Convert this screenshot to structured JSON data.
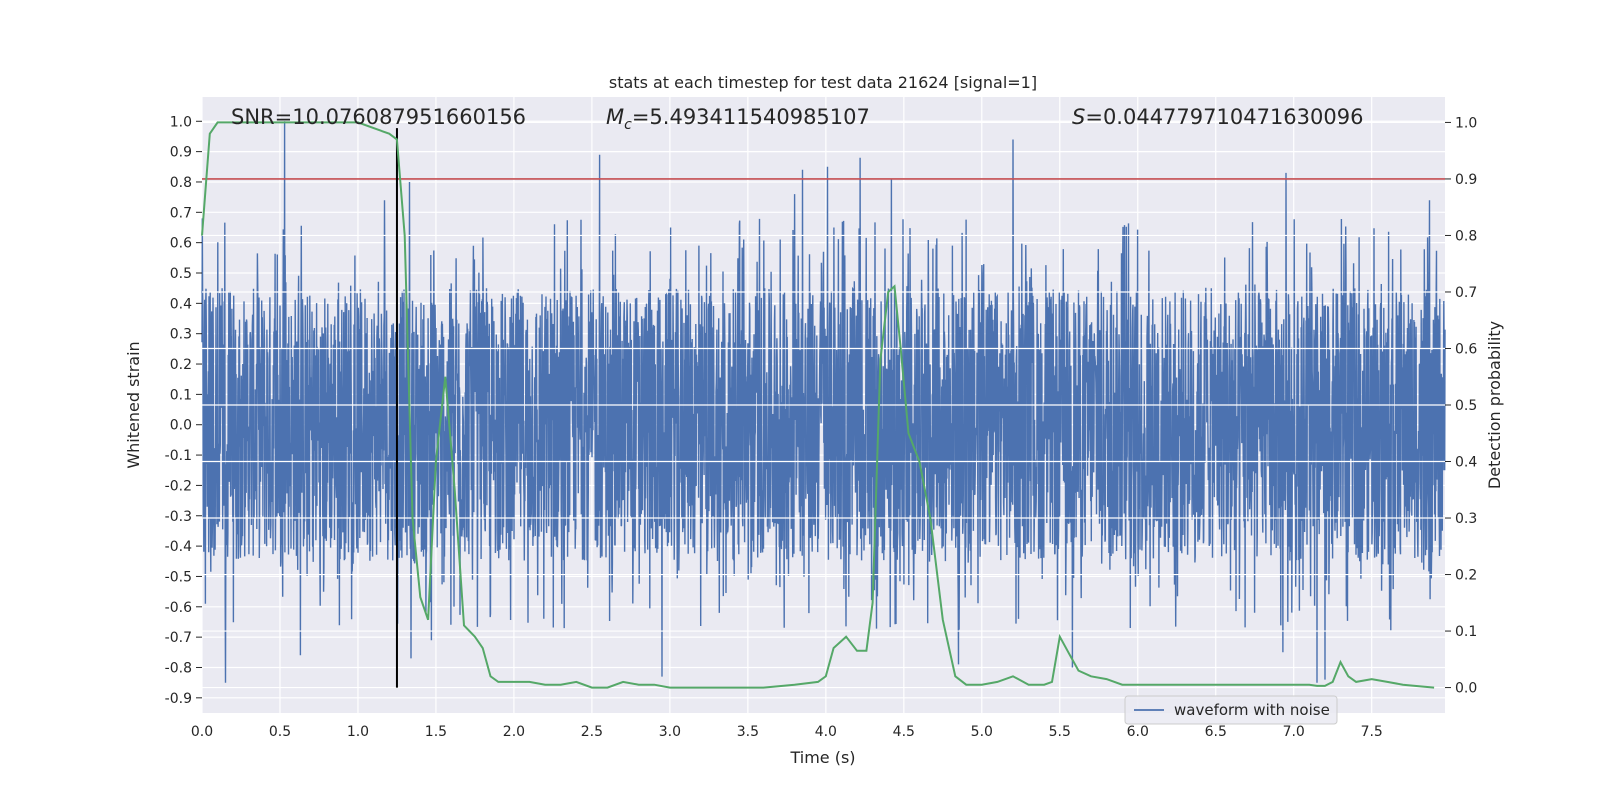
{
  "chart_data": {
    "type": "line",
    "title": "stats at each timestep for test data 21624 [signal=1]",
    "xlabel": "Time (s)",
    "ylabel_left": "Whitened strain",
    "ylabel_right": "Detection probability",
    "xlim": [
      0.0,
      7.97
    ],
    "ylim_left": [
      -0.95,
      1.08
    ],
    "ylim_right": [
      -0.045,
      1.045
    ],
    "x_ticks": [
      "0.0",
      "0.5",
      "1.0",
      "1.5",
      "2.0",
      "2.5",
      "3.0",
      "3.5",
      "4.0",
      "4.5",
      "5.0",
      "5.5",
      "6.0",
      "6.5",
      "7.0",
      "7.5"
    ],
    "y_left_ticks": [
      "1.0",
      "0.9",
      "0.8",
      "0.7",
      "0.6",
      "0.5",
      "0.4",
      "0.3",
      "0.2",
      "0.1",
      "0.0",
      "-0.1",
      "-0.2",
      "-0.3",
      "-0.4",
      "-0.5",
      "-0.6",
      "-0.7",
      "-0.8",
      "-0.9"
    ],
    "y_right_ticks": [
      "1.0",
      "0.9",
      "0.8",
      "0.7",
      "0.6",
      "0.5",
      "0.4",
      "0.3",
      "0.2",
      "0.1",
      "0.0"
    ],
    "annotations": {
      "snr": "SNR=10.076087951660156",
      "mc_symbol": "M",
      "mc_sub": "c",
      "mc_value": "=5.493411540985107",
      "s_symbol": "S",
      "s_value": "=0.044779710471630096"
    },
    "threshold_probability": 0.9,
    "event_time": 1.25,
    "waveform": {
      "name": "waveform with noise",
      "color": "#4c72b0",
      "samples_per_second": 1024,
      "typical_envelope": [
        -0.45,
        0.45
      ],
      "spikes": [
        {
          "t": 0.53,
          "v": 1.0
        },
        {
          "t": 0.15,
          "v": -0.85
        },
        {
          "t": 2.55,
          "v": 0.89
        },
        {
          "t": 2.95,
          "v": -0.83
        },
        {
          "t": 4.22,
          "v": 0.88
        },
        {
          "t": 4.42,
          "v": 0.81
        },
        {
          "t": 5.2,
          "v": 0.94
        },
        {
          "t": 6.95,
          "v": 0.83
        },
        {
          "t": 7.15,
          "v": -0.85
        },
        {
          "t": 7.2,
          "v": -0.84
        },
        {
          "t": 3.85,
          "v": 0.84
        },
        {
          "t": 4.01,
          "v": 0.85
        },
        {
          "t": 1.33,
          "v": 0.8
        },
        {
          "t": 1.17,
          "v": 0.74
        },
        {
          "t": 7.87,
          "v": 0.74
        },
        {
          "t": 1.47,
          "v": -0.71
        },
        {
          "t": 5.58,
          "v": -0.8
        },
        {
          "t": 6.93,
          "v": -0.75
        },
        {
          "t": 0.63,
          "v": -0.76
        },
        {
          "t": 1.34,
          "v": -0.77
        },
        {
          "t": 3.8,
          "v": 0.76
        },
        {
          "t": 4.85,
          "v": -0.79
        }
      ]
    },
    "probability": {
      "name": "Detection probability",
      "color": "#55a868",
      "x": [
        0.0,
        0.05,
        0.1,
        0.2,
        0.4,
        0.6,
        0.8,
        1.0,
        1.1,
        1.2,
        1.25,
        1.3,
        1.35,
        1.4,
        1.45,
        1.5,
        1.56,
        1.62,
        1.68,
        1.75,
        1.8,
        1.85,
        1.9,
        2.0,
        2.1,
        2.2,
        2.3,
        2.4,
        2.5,
        2.6,
        2.7,
        2.8,
        2.9,
        3.0,
        3.2,
        3.4,
        3.6,
        3.8,
        3.95,
        4.0,
        4.05,
        4.13,
        4.2,
        4.26,
        4.3,
        4.35,
        4.4,
        4.44,
        4.48,
        4.53,
        4.6,
        4.67,
        4.75,
        4.83,
        4.9,
        5.0,
        5.1,
        5.2,
        5.3,
        5.4,
        5.45,
        5.5,
        5.56,
        5.62,
        5.7,
        5.8,
        5.9,
        6.0,
        6.2,
        6.4,
        6.6,
        6.8,
        6.9,
        7.0,
        7.1,
        7.15,
        7.2,
        7.25,
        7.3,
        7.35,
        7.4,
        7.5,
        7.6,
        7.7,
        7.9
      ],
      "y": [
        0.8,
        0.98,
        1.0,
        1.0,
        1.0,
        1.0,
        1.0,
        1.0,
        0.99,
        0.98,
        0.97,
        0.8,
        0.3,
        0.16,
        0.12,
        0.4,
        0.55,
        0.35,
        0.11,
        0.09,
        0.07,
        0.02,
        0.01,
        0.01,
        0.01,
        0.005,
        0.005,
        0.01,
        0.0,
        0.0,
        0.01,
        0.005,
        0.005,
        0.0,
        0.0,
        0.0,
        0.0,
        0.005,
        0.01,
        0.02,
        0.07,
        0.09,
        0.065,
        0.065,
        0.15,
        0.58,
        0.7,
        0.71,
        0.6,
        0.45,
        0.4,
        0.3,
        0.12,
        0.02,
        0.005,
        0.005,
        0.01,
        0.02,
        0.005,
        0.005,
        0.01,
        0.09,
        0.06,
        0.03,
        0.02,
        0.015,
        0.005,
        0.005,
        0.005,
        0.005,
        0.005,
        0.005,
        0.005,
        0.005,
        0.005,
        0.003,
        0.003,
        0.01,
        0.045,
        0.02,
        0.01,
        0.015,
        0.01,
        0.005,
        0.0
      ]
    },
    "legend": {
      "label": "waveform with noise",
      "position": "lower-right"
    }
  }
}
